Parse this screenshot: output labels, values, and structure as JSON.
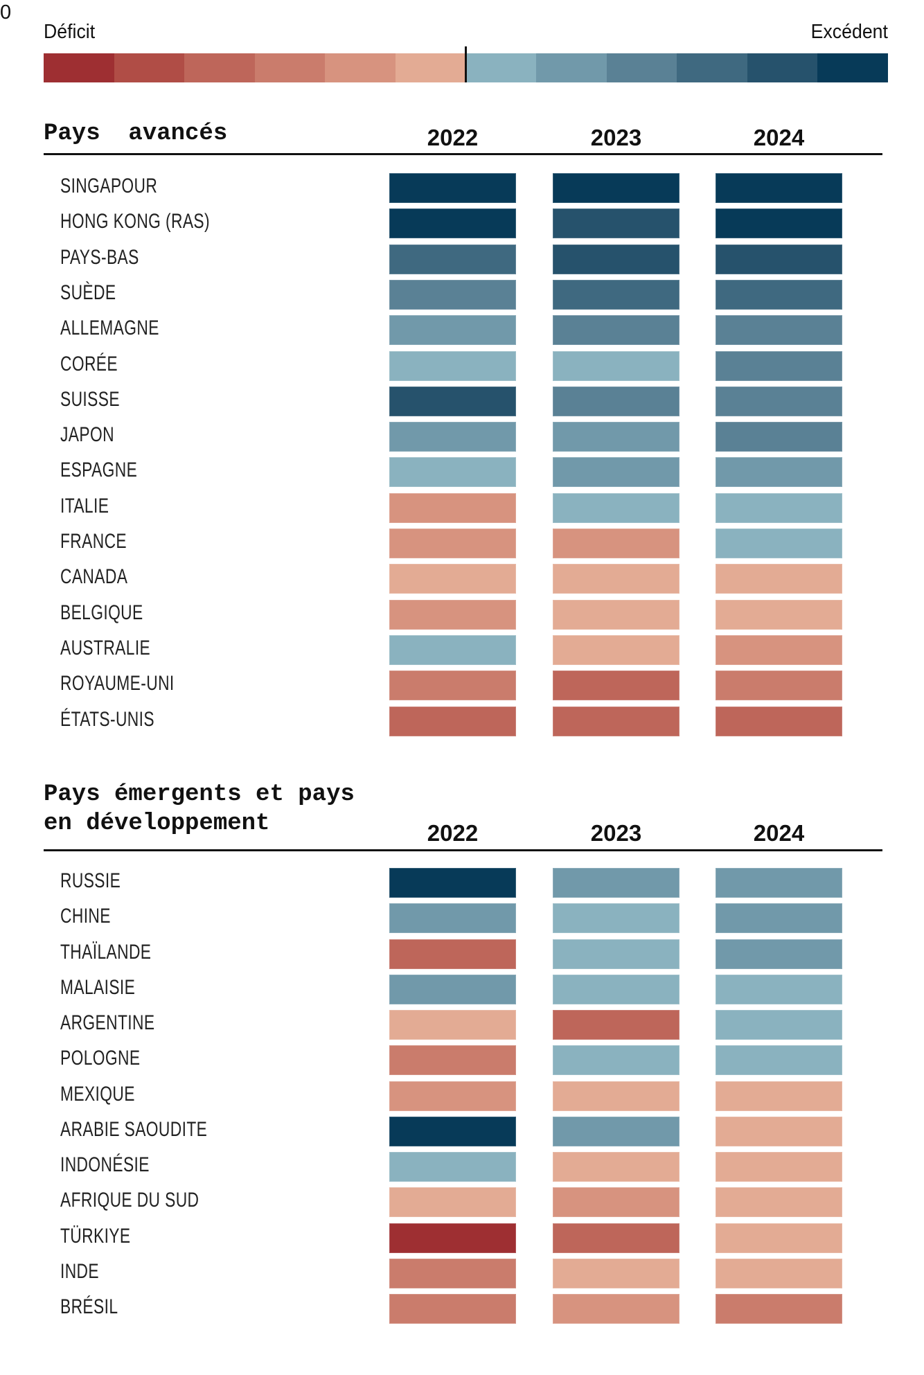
{
  "legend": {
    "deficit_label": "Déficit",
    "zero_label": "0",
    "surplus_label": "Excédent",
    "levels": [
      -6,
      -5,
      -4,
      -3,
      -2,
      -1,
      1,
      2,
      3,
      4,
      5,
      6
    ]
  },
  "colors": {
    "-6": "#9e2f32",
    "-5": "#b04d46",
    "-4": "#be665a",
    "-3": "#ca7c6c",
    "-2": "#d7937f",
    "-1": "#e3ab94",
    "1": "#8ab2bf",
    "2": "#7199aa",
    "3": "#5a8195",
    "4": "#3f6980",
    "5": "#26526c",
    "6": "#073a58",
    "zero_line": "#111111",
    "text": "#111111"
  },
  "chart_data": {
    "type": "heatmap",
    "title": "",
    "scale": {
      "description_labels": [
        "Déficit",
        "0",
        "Excédent"
      ],
      "bins": [
        -6,
        -5,
        -4,
        -3,
        -2,
        -1,
        1,
        2,
        3,
        4,
        5,
        6
      ]
    },
    "columns": [
      "2022",
      "2023",
      "2024"
    ],
    "sections": [
      {
        "title": "Pays  avancés",
        "years": [
          "2022",
          "2023",
          "2024"
        ],
        "rows": [
          {
            "label": "SINGAPOUR",
            "values": [
              6,
              6,
              6
            ]
          },
          {
            "label": "HONG KONG (RAS)",
            "values": [
              6,
              5,
              6
            ]
          },
          {
            "label": "PAYS-BAS",
            "values": [
              4,
              5,
              5
            ]
          },
          {
            "label": "SUÈDE",
            "values": [
              3,
              4,
              4
            ]
          },
          {
            "label": "ALLEMAGNE",
            "values": [
              2,
              3,
              3
            ]
          },
          {
            "label": "CORÉE",
            "values": [
              1,
              1,
              3
            ]
          },
          {
            "label": "SUISSE",
            "values": [
              5,
              3,
              3
            ]
          },
          {
            "label": "JAPON",
            "values": [
              2,
              2,
              3
            ]
          },
          {
            "label": "ESPAGNE",
            "values": [
              1,
              2,
              2
            ]
          },
          {
            "label": "ITALIE",
            "values": [
              -2,
              1,
              1
            ]
          },
          {
            "label": "FRANCE",
            "values": [
              -2,
              -2,
              1
            ]
          },
          {
            "label": "CANADA",
            "values": [
              -1,
              -1,
              -1
            ]
          },
          {
            "label": "BELGIQUE",
            "values": [
              -2,
              -1,
              -1
            ]
          },
          {
            "label": "AUSTRALIE",
            "values": [
              1,
              -1,
              -2
            ]
          },
          {
            "label": "ROYAUME-UNI",
            "values": [
              -3,
              -4,
              -3
            ]
          },
          {
            "label": "ÉTATS-UNIS",
            "values": [
              -4,
              -4,
              -4
            ]
          }
        ]
      },
      {
        "title": "Pays émergents et pays\nen développement",
        "years": [
          "2022",
          "2023",
          "2024"
        ],
        "rows": [
          {
            "label": "RUSSIE",
            "values": [
              6,
              2,
              2
            ]
          },
          {
            "label": "CHINE",
            "values": [
              2,
              1,
              2
            ]
          },
          {
            "label": "THAÏLANDE",
            "values": [
              -4,
              1,
              2
            ]
          },
          {
            "label": "MALAISIE",
            "values": [
              2,
              1,
              1
            ]
          },
          {
            "label": "ARGENTINE",
            "values": [
              -1,
              -4,
              1
            ]
          },
          {
            "label": "POLOGNE",
            "values": [
              -3,
              1,
              1
            ]
          },
          {
            "label": "MEXIQUE",
            "values": [
              -2,
              -1,
              -1
            ]
          },
          {
            "label": "ARABIE SAOUDITE",
            "values": [
              6,
              2,
              -1
            ]
          },
          {
            "label": "INDONÉSIE",
            "values": [
              1,
              -1,
              -1
            ]
          },
          {
            "label": "AFRIQUE DU SUD",
            "values": [
              -1,
              -2,
              -1
            ]
          },
          {
            "label": "TÜRKIYE",
            "values": [
              -6,
              -4,
              -1
            ]
          },
          {
            "label": "INDE",
            "values": [
              -3,
              -1,
              -1
            ]
          },
          {
            "label": "BRÉSIL",
            "values": [
              -3,
              -2,
              -3
            ]
          }
        ]
      }
    ]
  }
}
